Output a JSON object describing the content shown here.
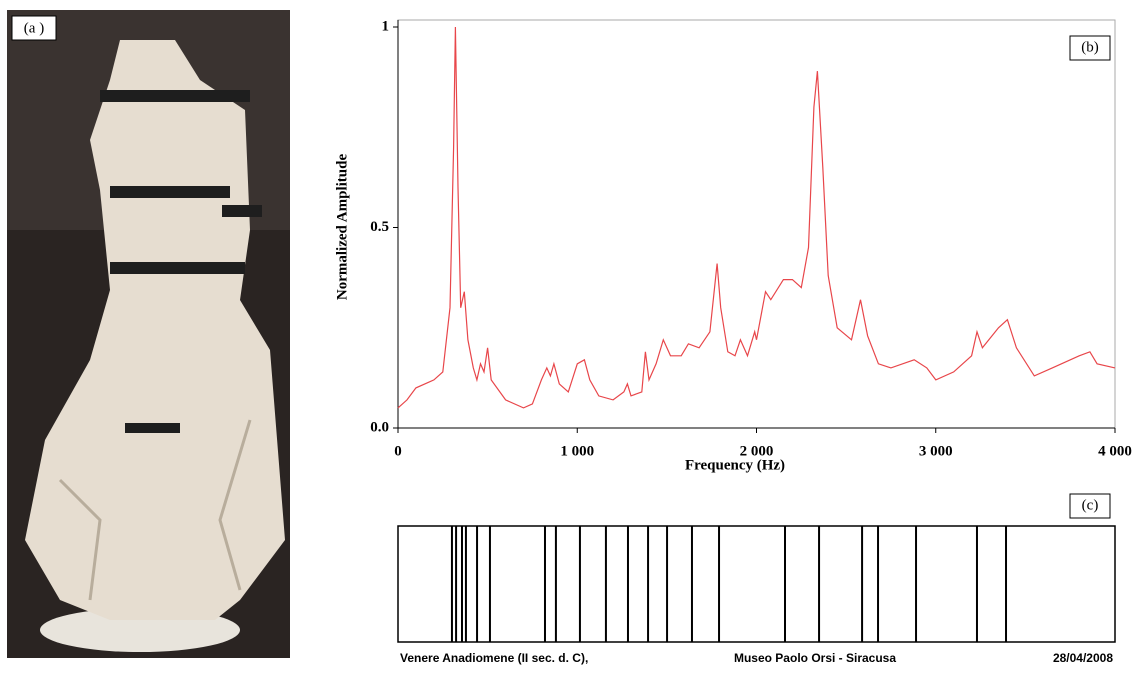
{
  "photo": {
    "label": "(a )"
  },
  "chart_data": [
    {
      "type": "line",
      "label": "(b)",
      "x_label": "Frequency (Hz)",
      "y_label": "Normalized Amplitude",
      "color": "#e8464a",
      "x": [
        0,
        50,
        100,
        200,
        250,
        290,
        310,
        320,
        335,
        350,
        370,
        390,
        420,
        440,
        460,
        480,
        500,
        520,
        600,
        700,
        750,
        800,
        830,
        850,
        870,
        900,
        950,
        1000,
        1040,
        1070,
        1120,
        1200,
        1260,
        1280,
        1300,
        1360,
        1380,
        1400,
        1440,
        1480,
        1520,
        1580,
        1620,
        1680,
        1740,
        1780,
        1800,
        1840,
        1880,
        1910,
        1950,
        1990,
        2000,
        2050,
        2080,
        2150,
        2200,
        2250,
        2290,
        2320,
        2340,
        2370,
        2400,
        2450,
        2530,
        2580,
        2620,
        2680,
        2750,
        2880,
        2950,
        3000,
        3100,
        3200,
        3230,
        3260,
        3350,
        3400,
        3450,
        3550,
        3650,
        3800,
        3860,
        3900,
        4000
      ],
      "values": [
        0.05,
        0.07,
        0.1,
        0.12,
        0.14,
        0.3,
        0.7,
        1.0,
        0.6,
        0.3,
        0.34,
        0.22,
        0.15,
        0.12,
        0.16,
        0.14,
        0.2,
        0.12,
        0.07,
        0.05,
        0.06,
        0.12,
        0.15,
        0.13,
        0.16,
        0.11,
        0.09,
        0.16,
        0.17,
        0.12,
        0.08,
        0.07,
        0.09,
        0.11,
        0.08,
        0.09,
        0.19,
        0.12,
        0.16,
        0.22,
        0.18,
        0.18,
        0.21,
        0.2,
        0.24,
        0.41,
        0.3,
        0.19,
        0.18,
        0.22,
        0.18,
        0.24,
        0.22,
        0.34,
        0.32,
        0.37,
        0.37,
        0.35,
        0.45,
        0.8,
        0.89,
        0.65,
        0.38,
        0.25,
        0.22,
        0.32,
        0.23,
        0.16,
        0.15,
        0.17,
        0.15,
        0.12,
        0.14,
        0.18,
        0.24,
        0.2,
        0.25,
        0.27,
        0.2,
        0.13,
        0.15,
        0.18,
        0.19,
        0.16,
        0.15
      ],
      "xlim": [
        0,
        4000
      ],
      "xticks": [
        0,
        {
          "value": 1000,
          "label": "1 000"
        },
        {
          "value": 2000,
          "label": "2 000"
        },
        {
          "value": 3000,
          "label": "3 000"
        },
        {
          "value": 4000,
          "label": "4 000"
        }
      ],
      "ylim": [
        0,
        1
      ],
      "yticks": [
        {
          "value": 0,
          "label": "0.0"
        },
        0.5,
        1
      ]
    },
    {
      "type": "barcode",
      "label": "(c)",
      "x": [
        301,
        324,
        357,
        379,
        441,
        513,
        820,
        881,
        1015,
        1160,
        1283,
        1395,
        1501,
        1640,
        1791,
        2159,
        2349,
        2589,
        2678,
        2890,
        3230,
        3392
      ],
      "xlim": [
        0,
        4000
      ],
      "captions": [
        "Venere Anadiomene (II sec. d. C),",
        "Museo Paolo Orsi - Siracusa",
        "28/04/2008"
      ]
    }
  ]
}
